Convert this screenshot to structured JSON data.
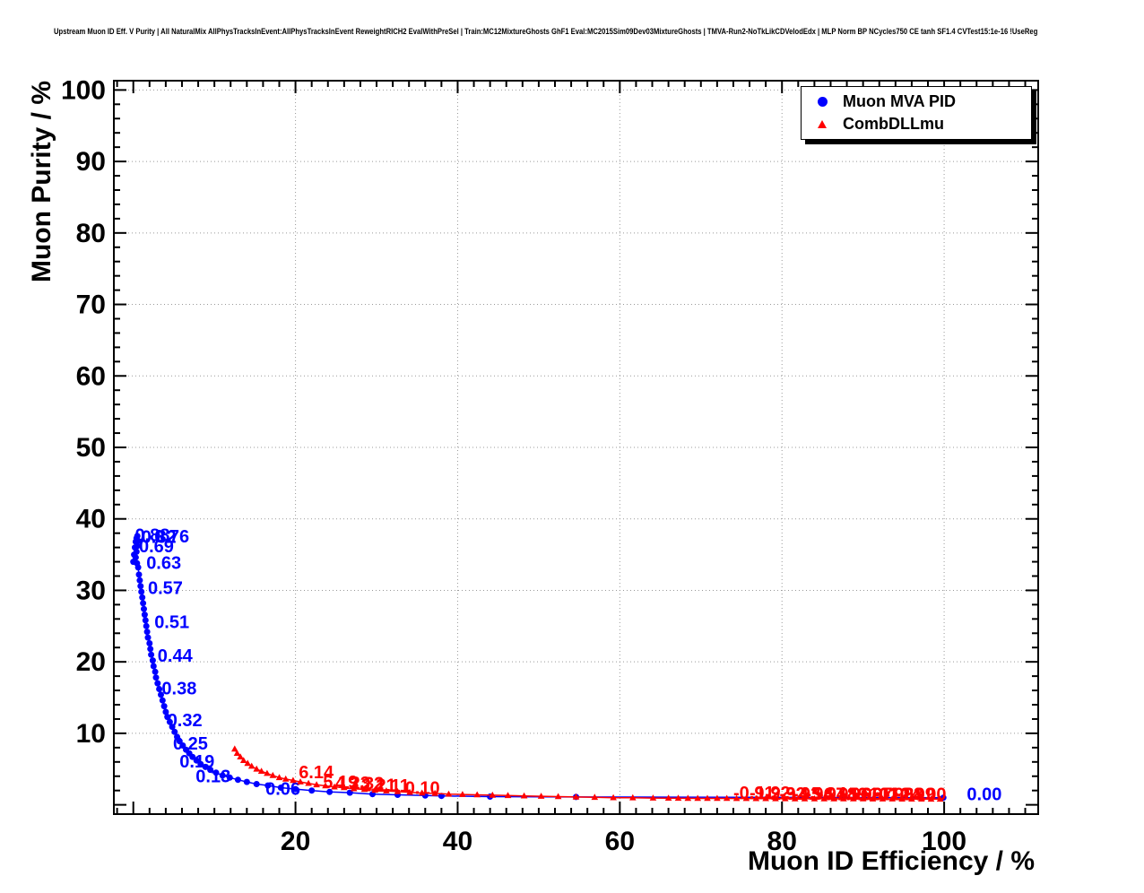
{
  "header": {
    "title": "Upstream Muon ID Eff. V Purity | All NaturalMix AllPhysTracksInEvent:AllPhysTracksInEvent ReweightRICH2 EvalWithPreSel | Train:MC12MixtureGhosts GhF1 Eval:MC2015Sim09Dev03MixtureGhosts | TMVA-Run2-NoTkLikCDVelodEdx | MLP Norm BP NCycles750 CE tanh SF1.4 CVTest15:1e-16 !UseReg"
  },
  "legend": {
    "entries": [
      {
        "label": "Muon MVA PID",
        "marker": "circle",
        "color": "#0000ff"
      },
      {
        "label": "CombDLLmu",
        "marker": "triangle",
        "color": "#ff0000"
      }
    ]
  },
  "chart_data": {
    "type": "scatter",
    "title": "",
    "xlabel": "Muon ID Efficiency / %",
    "ylabel": "Muon Purity / %",
    "xlim": [
      -2.4,
      111.6
    ],
    "ylim": [
      -1.3,
      101.3
    ],
    "xticks": [
      20,
      40,
      60,
      80,
      100
    ],
    "yticks": [
      10,
      20,
      30,
      40,
      50,
      60,
      70,
      80,
      90,
      100
    ],
    "grid": true,
    "series": [
      {
        "name": "Muon MVA PID",
        "color": "#0000ff",
        "marker": "circle",
        "points": [
          [
            0.0,
            34.0
          ],
          [
            0.1,
            35.0
          ],
          [
            0.2,
            36.0
          ],
          [
            0.3,
            36.8
          ],
          [
            0.4,
            37.3
          ],
          [
            0.5,
            37.6
          ],
          [
            0.6,
            36.9
          ],
          [
            0.5,
            36.2
          ],
          [
            0.4,
            35.4
          ],
          [
            0.3,
            34.6
          ],
          [
            0.45,
            33.8
          ],
          [
            0.6,
            33.2
          ],
          [
            0.7,
            32.2
          ],
          [
            0.8,
            31.4
          ],
          [
            0.9,
            30.6
          ],
          [
            1.0,
            29.8
          ],
          [
            1.1,
            29.0
          ],
          [
            1.2,
            28.2
          ],
          [
            1.3,
            27.4
          ],
          [
            1.4,
            26.6
          ],
          [
            1.5,
            25.8
          ],
          [
            1.6,
            25.0
          ],
          [
            1.7,
            24.2
          ],
          [
            1.8,
            23.4
          ],
          [
            2.0,
            22.6
          ],
          [
            2.1,
            21.8
          ],
          [
            2.2,
            21.0
          ],
          [
            2.4,
            20.2
          ],
          [
            2.5,
            19.4
          ],
          [
            2.7,
            18.6
          ],
          [
            2.8,
            17.8
          ],
          [
            3.0,
            17.0
          ],
          [
            3.2,
            16.2
          ],
          [
            3.4,
            15.4
          ],
          [
            3.6,
            14.6
          ],
          [
            3.8,
            13.8
          ],
          [
            4.0,
            13.0
          ],
          [
            4.2,
            12.3
          ],
          [
            4.5,
            11.6
          ],
          [
            4.8,
            10.9
          ],
          [
            5.1,
            10.2
          ],
          [
            5.4,
            9.5
          ],
          [
            5.7,
            8.9
          ],
          [
            6.1,
            8.3
          ],
          [
            6.5,
            7.7
          ],
          [
            6.9,
            7.2
          ],
          [
            7.3,
            6.7
          ],
          [
            7.8,
            6.2
          ],
          [
            8.3,
            5.7
          ],
          [
            8.9,
            5.3
          ],
          [
            9.5,
            4.9
          ],
          [
            10.2,
            4.5
          ],
          [
            11.0,
            4.1
          ],
          [
            11.9,
            3.8
          ],
          [
            12.9,
            3.5
          ],
          [
            14.0,
            3.2
          ],
          [
            15.2,
            2.9
          ],
          [
            16.6,
            2.7
          ],
          [
            18.2,
            2.4
          ],
          [
            20.0,
            2.2
          ],
          [
            22.0,
            2.0
          ],
          [
            24.2,
            1.8
          ],
          [
            26.7,
            1.7
          ],
          [
            29.5,
            1.5
          ],
          [
            32.6,
            1.4
          ],
          [
            36.0,
            1.3
          ],
          [
            38.0,
            1.25
          ],
          [
            44.0,
            1.15
          ],
          [
            54.6,
            1.1
          ],
          [
            99.9,
            1.0
          ]
        ],
        "labels": [
          {
            "text": "0.88",
            "x": 0.2,
            "y": 37.8
          },
          {
            "text": "0.82",
            "x": 1.0,
            "y": 37.5
          },
          {
            "text": "0.76",
            "x": 2.6,
            "y": 37.6
          },
          {
            "text": "0.69",
            "x": 0.7,
            "y": 36.2
          },
          {
            "text": "0.63",
            "x": 1.6,
            "y": 33.9
          },
          {
            "text": "0.57",
            "x": 1.8,
            "y": 30.4
          },
          {
            "text": "0.51",
            "x": 2.6,
            "y": 25.6
          },
          {
            "text": "0.44",
            "x": 3.0,
            "y": 20.9
          },
          {
            "text": "0.38",
            "x": 3.5,
            "y": 16.3
          },
          {
            "text": "0.32",
            "x": 4.2,
            "y": 11.9
          },
          {
            "text": "0.25",
            "x": 4.9,
            "y": 8.6
          },
          {
            "text": "0.19",
            "x": 5.7,
            "y": 6.1
          },
          {
            "text": "0.13",
            "x": 7.7,
            "y": 4.0
          },
          {
            "text": "0.06",
            "x": 16.3,
            "y": 2.3
          },
          {
            "text": "0.00",
            "x": 102.8,
            "y": 1.5
          }
        ]
      },
      {
        "name": "CombDLLmu",
        "color": "#ff0000",
        "marker": "triangle",
        "points": [
          [
            12.5,
            7.8
          ],
          [
            12.8,
            7.2
          ],
          [
            13.2,
            6.7
          ],
          [
            13.6,
            6.2
          ],
          [
            14.1,
            5.8
          ],
          [
            14.6,
            5.4
          ],
          [
            15.2,
            5.0
          ],
          [
            15.8,
            4.7
          ],
          [
            16.5,
            4.4
          ],
          [
            17.2,
            4.1
          ],
          [
            18.0,
            3.8
          ],
          [
            18.8,
            3.6
          ],
          [
            19.7,
            3.4
          ],
          [
            20.6,
            3.2
          ],
          [
            21.6,
            3.0
          ],
          [
            22.6,
            2.8
          ],
          [
            23.7,
            2.65
          ],
          [
            24.8,
            2.5
          ],
          [
            26.0,
            2.4
          ],
          [
            27.2,
            2.25
          ],
          [
            28.5,
            2.15
          ],
          [
            29.8,
            2.05
          ],
          [
            31.2,
            1.95
          ],
          [
            32.6,
            1.85
          ],
          [
            34.1,
            1.75
          ],
          [
            35.6,
            1.65
          ],
          [
            37.2,
            1.6
          ],
          [
            38.9,
            1.5
          ],
          [
            40.6,
            1.45
          ],
          [
            42.4,
            1.4
          ],
          [
            44.3,
            1.35
          ],
          [
            46.2,
            1.3
          ],
          [
            48.2,
            1.25
          ],
          [
            50.3,
            1.2
          ],
          [
            52.4,
            1.15
          ],
          [
            54.6,
            1.1
          ],
          [
            56.9,
            1.05
          ],
          [
            59.2,
            1.0
          ],
          [
            61.6,
            0.98
          ],
          [
            64.1,
            0.95
          ],
          [
            66.0,
            0.93
          ],
          [
            67.2,
            0.92
          ],
          [
            68.4,
            0.91
          ],
          [
            69.6,
            0.9
          ],
          [
            70.8,
            0.9
          ],
          [
            72.0,
            0.89
          ],
          [
            73.2,
            0.89
          ],
          [
            74.4,
            0.88
          ],
          [
            75.6,
            0.88
          ],
          [
            76.8,
            0.87
          ],
          [
            78.0,
            0.87
          ],
          [
            79.2,
            0.86
          ],
          [
            80.4,
            0.86
          ],
          [
            81.6,
            0.85
          ],
          [
            82.8,
            0.85
          ],
          [
            84.0,
            0.84
          ],
          [
            85.2,
            0.84
          ],
          [
            86.4,
            0.84
          ],
          [
            87.6,
            0.83
          ],
          [
            88.8,
            0.83
          ],
          [
            90.0,
            0.83
          ],
          [
            91.2,
            0.82
          ],
          [
            92.4,
            0.82
          ],
          [
            93.6,
            0.82
          ],
          [
            94.8,
            0.81
          ],
          [
            96.0,
            0.81
          ],
          [
            97.2,
            0.81
          ],
          [
            98.4,
            0.8
          ],
          [
            99.5,
            0.8
          ]
        ],
        "labels": [
          {
            "text": "6.14",
            "x": 20.4,
            "y": 4.6
          },
          {
            "text": "5.19",
            "x": 23.4,
            "y": 3.2
          },
          {
            "text": "4.23",
            "x": 24.9,
            "y": 3.1
          },
          {
            "text": "3.32",
            "x": 26.6,
            "y": 3.0
          },
          {
            "text": "2.21",
            "x": 28.1,
            "y": 2.8
          },
          {
            "text": "1.11",
            "x": 29.9,
            "y": 2.7
          },
          {
            "text": "0.10",
            "x": 33.5,
            "y": 2.4
          },
          {
            "text": "-0.91",
            "x": 74.0,
            "y": 1.7
          },
          {
            "text": "-1.92",
            "x": 76.0,
            "y": 1.7
          },
          {
            "text": "-2.92",
            "x": 77.9,
            "y": 1.6
          },
          {
            "text": "-3.93",
            "x": 79.7,
            "y": 1.6
          },
          {
            "text": "-4.94",
            "x": 81.3,
            "y": 1.6
          },
          {
            "text": "-5.94",
            "x": 82.9,
            "y": 1.6
          },
          {
            "text": "-6.95",
            "x": 84.4,
            "y": 1.5
          },
          {
            "text": "-7.96",
            "x": 85.9,
            "y": 1.5
          },
          {
            "text": "-8.96",
            "x": 87.3,
            "y": 1.5
          },
          {
            "text": "-9.97",
            "x": 88.6,
            "y": 1.5
          },
          {
            "text": "-10.98",
            "x": 90.0,
            "y": 1.5
          },
          {
            "text": "-11.98",
            "x": 91.3,
            "y": 1.5
          },
          {
            "text": "-12.99",
            "x": 92.6,
            "y": 1.5
          },
          {
            "text": "-14.00",
            "x": 94.0,
            "y": 1.5
          }
        ]
      }
    ]
  },
  "colors": {
    "series_blue": "#0000ff",
    "series_red": "#ff0000",
    "grid": "#999999",
    "frame": "#000000",
    "background": "#ffffff"
  }
}
